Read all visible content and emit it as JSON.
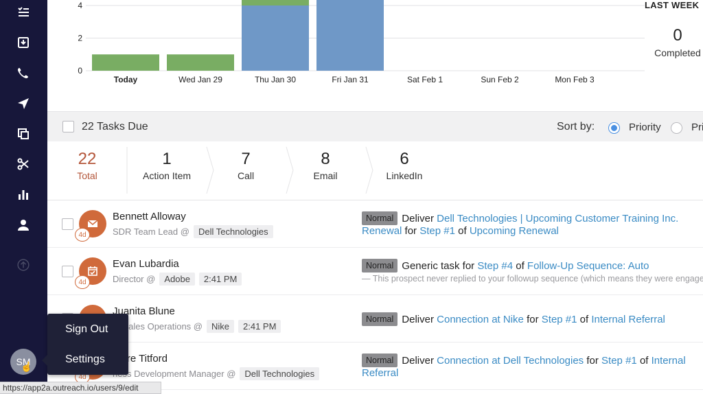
{
  "sidebar": {
    "items": [
      {
        "icon": "tasks-icon"
      },
      {
        "icon": "inbox-icon"
      },
      {
        "icon": "phone-icon"
      },
      {
        "icon": "send-icon"
      },
      {
        "icon": "copy-icon"
      },
      {
        "icon": "scissors-icon"
      },
      {
        "icon": "bar-chart-icon"
      },
      {
        "icon": "person-icon"
      },
      {
        "icon": "upload-icon"
      }
    ],
    "avatar_initials": "SM"
  },
  "chart_data": {
    "type": "bar",
    "categories": [
      "Today",
      "Wed Jan 29",
      "Thu Jan 30",
      "Fri Jan 31",
      "Sat Feb 1",
      "Sun Feb 2",
      "Mon Feb 3"
    ],
    "series": [
      {
        "values": [
          1,
          1,
          4,
          4.7,
          0,
          0,
          0
        ],
        "color": "#79ad63"
      },
      {
        "values": [
          0,
          0,
          0.6,
          0,
          0,
          0,
          0
        ],
        "color": "#79ad63"
      }
    ],
    "stack_colors": {
      "blue": "#6f98c7",
      "green": "#79ad63"
    },
    "blue_values": [
      0,
      0,
      4,
      4.7,
      0,
      0,
      0
    ],
    "green_values": [
      1,
      1,
      0.6,
      0,
      0,
      0,
      0
    ],
    "yticks": [
      "0",
      "2",
      "4"
    ],
    "ylim": [
      0,
      4.7
    ],
    "bold_category": "Today",
    "grid": true
  },
  "summary": {
    "title": "LAST WEEK",
    "value": "0",
    "label": "Completed"
  },
  "tasks_bar": {
    "count_label": "22 Tasks Due",
    "sort_label": "Sort by:",
    "option_priority": "Priority",
    "option_other": "Pri"
  },
  "tabs": [
    {
      "count": "22",
      "label": "Total"
    },
    {
      "count": "1",
      "label": "Action Item"
    },
    {
      "count": "7",
      "label": "Call"
    },
    {
      "count": "8",
      "label": "Email"
    },
    {
      "count": "6",
      "label": "LinkedIn"
    }
  ],
  "tasks": [
    {
      "name": "Bennett Alloway",
      "title": "SDR Team Lead @",
      "company": "Dell Technologies",
      "time": "",
      "age": "4d",
      "icon": "email-icon",
      "priority": "Normal",
      "verb": "Deliver",
      "link1": "Dell Technologies | Upcoming Customer Training Inc. Renewal",
      "for": "for",
      "link2": "Step #1",
      "of": "of",
      "link3": "Upcoming Renewal"
    },
    {
      "name": "Evan Lubardia",
      "title": "Director @",
      "company": "Adobe",
      "time": "2:41 PM",
      "age": "4d",
      "icon": "calendar-check-icon",
      "priority": "Normal",
      "verb": "Generic task for",
      "link1": "Step #4",
      "of": "of",
      "link2": "Follow-Up Sequence: Auto",
      "note": "— This prospect never replied to your followup sequence (which means they were engage"
    },
    {
      "name": "Juanita Blune",
      "title": "of Sales Operations @",
      "company": "Nike",
      "time": "2:41 PM",
      "priority": "Normal",
      "verb": "Deliver",
      "link1": "Connection at Nike",
      "for": "for",
      "link2": "Step #1",
      "of": "of",
      "link3": "Internal Referral"
    },
    {
      "name": "more Titford",
      "title": "ness Development Manager @",
      "company": "Dell Technologies",
      "age": "4d",
      "priority": "Normal",
      "verb": "Deliver",
      "link1": "Connection at Dell Technologies",
      "for": "for",
      "link2": "Step #1",
      "of": "of",
      "link3": "Internal Referral"
    }
  ],
  "popup": {
    "items": [
      "Sign Out",
      "Settings"
    ]
  },
  "status_url": "https://app2a.outreach.io/users/9/edit"
}
